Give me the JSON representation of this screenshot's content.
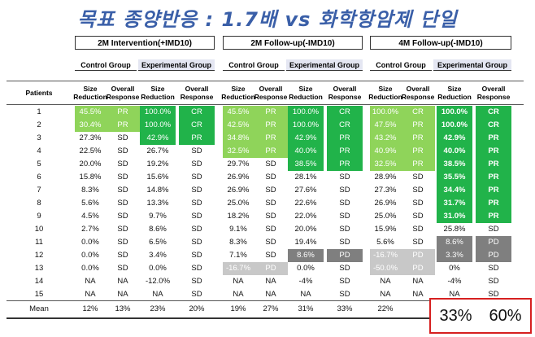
{
  "title": "목표 종양반응 : 1.7배 vs 화학항암제 단일",
  "sections": [
    "2M Intervention(+IMD10)",
    "2M Follow-up(-IMD10)",
    "4M Follow-up(-IMD10)"
  ],
  "groups": {
    "control": "Control Group",
    "experimental": "Experimental Group"
  },
  "headers": {
    "patients": "Patients",
    "size": "Size Reduction",
    "overall": "Overall Response"
  },
  "rows": [
    {
      "p": "1",
      "v": [
        [
          "45.5%",
          "g2"
        ],
        [
          "PR",
          "g2"
        ],
        [
          "100.0%",
          "g1"
        ],
        [
          "CR",
          "g1"
        ],
        [
          "45.5%",
          "g2"
        ],
        [
          "PR",
          "g2"
        ],
        [
          "100.0%",
          "g1"
        ],
        [
          "CR",
          "g1"
        ],
        [
          "100.0%",
          "g2"
        ],
        [
          "CR",
          "g2"
        ],
        [
          "100.0%",
          "g1b"
        ],
        [
          "CR",
          "g1b"
        ]
      ]
    },
    {
      "p": "2",
      "v": [
        [
          "30.4%",
          "g2"
        ],
        [
          "PR",
          "g2"
        ],
        [
          "100.0%",
          "g1"
        ],
        [
          "CR",
          "g1"
        ],
        [
          "42.5%",
          "g2"
        ],
        [
          "PR",
          "g2"
        ],
        [
          "100.0%",
          "g1"
        ],
        [
          "CR",
          "g1"
        ],
        [
          "47.5%",
          "g2"
        ],
        [
          "PR",
          "g2"
        ],
        [
          "100.0%",
          "g1b"
        ],
        [
          "CR",
          "g1b"
        ]
      ]
    },
    {
      "p": "3",
      "v": [
        [
          "27.3%",
          ""
        ],
        [
          "SD",
          ""
        ],
        [
          "42.9%",
          "g1"
        ],
        [
          "PR",
          "g1"
        ],
        [
          "34.8%",
          "g2"
        ],
        [
          "PR",
          "g2"
        ],
        [
          "42.9%",
          "g1"
        ],
        [
          "PR",
          "g1"
        ],
        [
          "43.2%",
          "g2"
        ],
        [
          "PR",
          "g2"
        ],
        [
          "42.9%",
          "g1b"
        ],
        [
          "PR",
          "g1b"
        ]
      ]
    },
    {
      "p": "4",
      "v": [
        [
          "22.5%",
          ""
        ],
        [
          "SD",
          ""
        ],
        [
          "26.7%",
          ""
        ],
        [
          "SD",
          ""
        ],
        [
          "32.5%",
          "g2"
        ],
        [
          "PR",
          "g2"
        ],
        [
          "40.0%",
          "g1"
        ],
        [
          "PR",
          "g1"
        ],
        [
          "40.9%",
          "g2"
        ],
        [
          "PR",
          "g2"
        ],
        [
          "40.0%",
          "g1b"
        ],
        [
          "PR",
          "g1b"
        ]
      ]
    },
    {
      "p": "5",
      "v": [
        [
          "20.0%",
          ""
        ],
        [
          "SD",
          ""
        ],
        [
          "19.2%",
          ""
        ],
        [
          "SD",
          ""
        ],
        [
          "29.7%",
          ""
        ],
        [
          "SD",
          ""
        ],
        [
          "38.5%",
          "g1"
        ],
        [
          "PR",
          "g1"
        ],
        [
          "32.5%",
          "g2"
        ],
        [
          "PR",
          "g2"
        ],
        [
          "38.5%",
          "g1b"
        ],
        [
          "PR",
          "g1b"
        ]
      ]
    },
    {
      "p": "6",
      "v": [
        [
          "15.8%",
          ""
        ],
        [
          "SD",
          ""
        ],
        [
          "15.6%",
          ""
        ],
        [
          "SD",
          ""
        ],
        [
          "26.9%",
          ""
        ],
        [
          "SD",
          ""
        ],
        [
          "28.1%",
          ""
        ],
        [
          "SD",
          ""
        ],
        [
          "28.9%",
          ""
        ],
        [
          "SD",
          ""
        ],
        [
          "35.5%",
          "g1b"
        ],
        [
          "PR",
          "g1b"
        ]
      ]
    },
    {
      "p": "7",
      "v": [
        [
          "8.3%",
          ""
        ],
        [
          "SD",
          ""
        ],
        [
          "14.8%",
          ""
        ],
        [
          "SD",
          ""
        ],
        [
          "26.9%",
          ""
        ],
        [
          "SD",
          ""
        ],
        [
          "27.6%",
          ""
        ],
        [
          "SD",
          ""
        ],
        [
          "27.3%",
          ""
        ],
        [
          "SD",
          ""
        ],
        [
          "34.4%",
          "g1b"
        ],
        [
          "PR",
          "g1b"
        ]
      ]
    },
    {
      "p": "8",
      "v": [
        [
          "5.6%",
          ""
        ],
        [
          "SD",
          ""
        ],
        [
          "13.3%",
          ""
        ],
        [
          "SD",
          ""
        ],
        [
          "25.0%",
          ""
        ],
        [
          "SD",
          ""
        ],
        [
          "22.6%",
          ""
        ],
        [
          "SD",
          ""
        ],
        [
          "26.9%",
          ""
        ],
        [
          "SD",
          ""
        ],
        [
          "31.7%",
          "g1b"
        ],
        [
          "PR",
          "g1b"
        ]
      ]
    },
    {
      "p": "9",
      "v": [
        [
          "4.5%",
          ""
        ],
        [
          "SD",
          ""
        ],
        [
          "9.7%",
          ""
        ],
        [
          "SD",
          ""
        ],
        [
          "18.2%",
          ""
        ],
        [
          "SD",
          ""
        ],
        [
          "22.0%",
          ""
        ],
        [
          "SD",
          ""
        ],
        [
          "25.0%",
          ""
        ],
        [
          "SD",
          ""
        ],
        [
          "31.0%",
          "g1b"
        ],
        [
          "PR",
          "g1b"
        ]
      ]
    },
    {
      "p": "10",
      "v": [
        [
          "2.7%",
          ""
        ],
        [
          "SD",
          ""
        ],
        [
          "8.6%",
          ""
        ],
        [
          "SD",
          ""
        ],
        [
          "9.1%",
          ""
        ],
        [
          "SD",
          ""
        ],
        [
          "20.0%",
          ""
        ],
        [
          "SD",
          ""
        ],
        [
          "15.9%",
          ""
        ],
        [
          "SD",
          ""
        ],
        [
          "25.8%",
          ""
        ],
        [
          "SD",
          ""
        ]
      ]
    },
    {
      "p": "11",
      "v": [
        [
          "0.0%",
          ""
        ],
        [
          "SD",
          ""
        ],
        [
          "6.5%",
          ""
        ],
        [
          "SD",
          ""
        ],
        [
          "8.3%",
          ""
        ],
        [
          "SD",
          ""
        ],
        [
          "19.4%",
          ""
        ],
        [
          "SD",
          ""
        ],
        [
          "5.6%",
          ""
        ],
        [
          "SD",
          ""
        ],
        [
          "8.6%",
          "gd"
        ],
        [
          "PD",
          "gd"
        ]
      ]
    },
    {
      "p": "12",
      "v": [
        [
          "0.0%",
          ""
        ],
        [
          "SD",
          ""
        ],
        [
          "3.4%",
          ""
        ],
        [
          "SD",
          ""
        ],
        [
          "7.1%",
          ""
        ],
        [
          "SD",
          ""
        ],
        [
          "8.6%",
          "gd"
        ],
        [
          "PD",
          "gd"
        ],
        [
          "-16.7%",
          "gl"
        ],
        [
          "PD",
          "gl"
        ],
        [
          "3.3%",
          "gd"
        ],
        [
          "PD",
          "gd"
        ]
      ]
    },
    {
      "p": "13",
      "v": [
        [
          "0.0%",
          ""
        ],
        [
          "SD",
          ""
        ],
        [
          "0.0%",
          ""
        ],
        [
          "SD",
          ""
        ],
        [
          "-16.7%",
          "gl"
        ],
        [
          "PD",
          "gl"
        ],
        [
          "0.0%",
          ""
        ],
        [
          "SD",
          ""
        ],
        [
          "-50.0%",
          "gl"
        ],
        [
          "PD",
          "gl"
        ],
        [
          "0%",
          ""
        ],
        [
          "SD",
          ""
        ]
      ]
    },
    {
      "p": "14",
      "v": [
        [
          "NA",
          ""
        ],
        [
          "NA",
          ""
        ],
        [
          "-12.0%",
          ""
        ],
        [
          "SD",
          ""
        ],
        [
          "NA",
          ""
        ],
        [
          "NA",
          ""
        ],
        [
          "-4%",
          ""
        ],
        [
          "SD",
          ""
        ],
        [
          "NA",
          ""
        ],
        [
          "NA",
          ""
        ],
        [
          "-4%",
          ""
        ],
        [
          "SD",
          ""
        ]
      ]
    },
    {
      "p": "15",
      "v": [
        [
          "NA",
          ""
        ],
        [
          "NA",
          ""
        ],
        [
          "NA",
          ""
        ],
        [
          "SD",
          ""
        ],
        [
          "NA",
          ""
        ],
        [
          "NA",
          ""
        ],
        [
          "NA",
          ""
        ],
        [
          "SD",
          ""
        ],
        [
          "NA",
          ""
        ],
        [
          "NA",
          ""
        ],
        [
          "NA",
          ""
        ],
        [
          "SD",
          ""
        ]
      ]
    }
  ],
  "mean": {
    "label": "Mean",
    "v": [
      "12%",
      "13%",
      "23%",
      "20%",
      "19%",
      "27%",
      "31%",
      "33%",
      "22%"
    ]
  },
  "highlight": {
    "a": "33%",
    "b": "60%"
  }
}
